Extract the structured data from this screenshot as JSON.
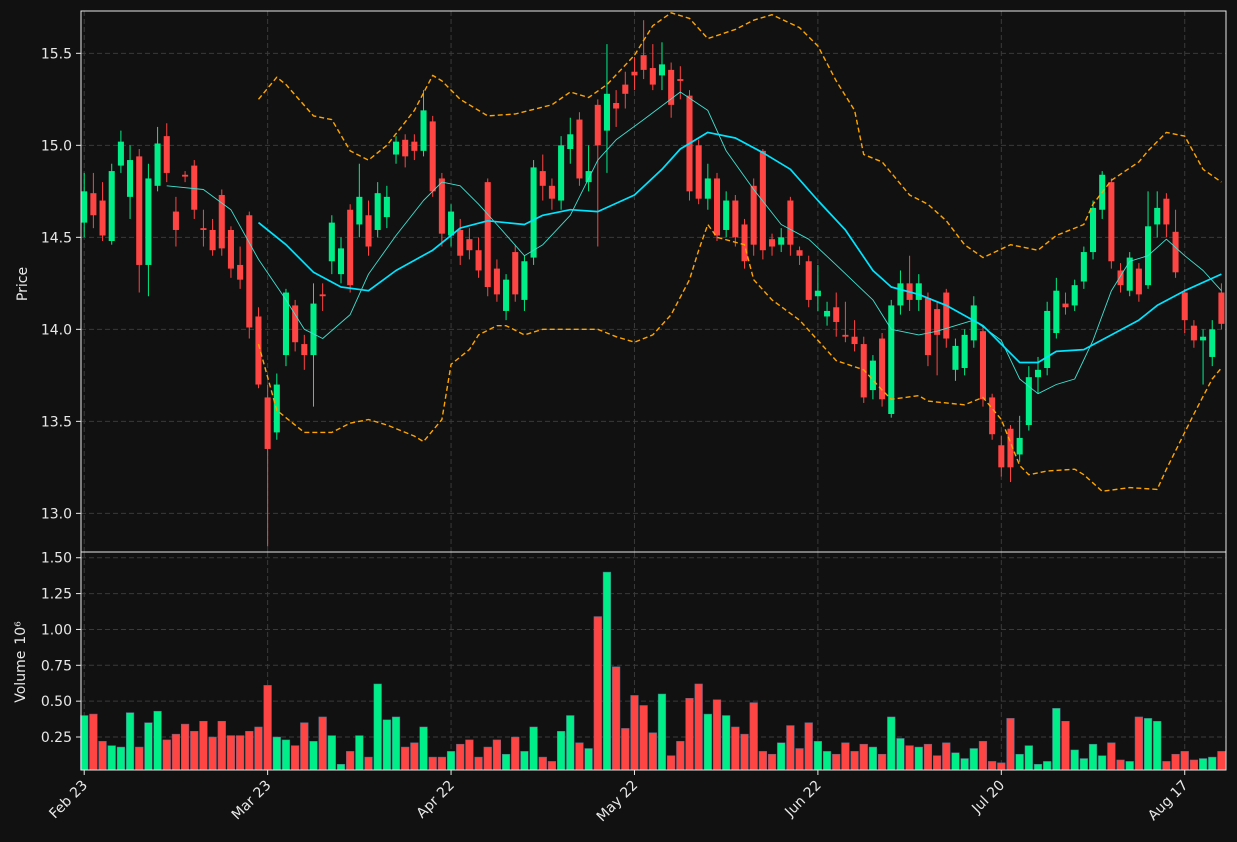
{
  "chart_data": {
    "type": "candlestick",
    "up_color": "#00ee88",
    "down_color": "#ff4444",
    "grid": true,
    "ylabel": "Price",
    "volume_label": "Volume",
    "volume_offset": "10⁶",
    "xlim": [
      -0.35,
      124.5
    ],
    "ylim": [
      12.79,
      15.73
    ],
    "yticks": [
      {
        "value": 13,
        "label": "13.0"
      },
      13.5,
      {
        "value": 14,
        "label": "14.0"
      },
      14.5,
      {
        "value": 15,
        "label": "15.0"
      },
      15.5
    ],
    "volume_ylim": [
      0.02,
      1.54
    ],
    "volume_yticks": [
      0.25,
      {
        "value": 0.5,
        "label": "0.50"
      },
      0.75,
      {
        "value": 1,
        "label": "1.00"
      },
      1.25,
      {
        "value": 1.5,
        "label": "1.50"
      }
    ],
    "categories": [
      "Feb 23",
      null,
      null,
      null,
      null,
      null,
      null,
      null,
      null,
      null,
      null,
      null,
      null,
      null,
      null,
      null,
      null,
      null,
      null,
      null,
      "Mar 23",
      null,
      null,
      null,
      null,
      null,
      null,
      null,
      null,
      null,
      null,
      null,
      null,
      null,
      null,
      null,
      null,
      null,
      null,
      null,
      "Apr 22",
      null,
      null,
      null,
      null,
      null,
      null,
      null,
      null,
      null,
      null,
      null,
      null,
      null,
      null,
      null,
      null,
      null,
      null,
      null,
      "May 22",
      null,
      null,
      null,
      null,
      null,
      null,
      null,
      null,
      null,
      null,
      null,
      null,
      null,
      null,
      null,
      null,
      null,
      null,
      null,
      "Jun 22",
      null,
      null,
      null,
      null,
      null,
      null,
      null,
      null,
      null,
      null,
      null,
      null,
      null,
      null,
      null,
      null,
      null,
      null,
      null,
      "Jul 20",
      null,
      null,
      null,
      null,
      null,
      null,
      null,
      null,
      null,
      null,
      null,
      null,
      null,
      null,
      null,
      null,
      null,
      null,
      null,
      "Aug 17",
      null,
      null,
      null,
      null
    ],
    "open": [
      14.58,
      14.74,
      14.7,
      14.48,
      14.89,
      14.72,
      14.94,
      14.35,
      14.78,
      15.05,
      14.64,
      14.84,
      14.89,
      14.55,
      14.54,
      14.73,
      14.54,
      14.35,
      14.62,
      14.07,
      13.63,
      13.44,
      13.86,
      14.13,
      13.92,
      13.86,
      14.19,
      14.37,
      14.3,
      14.65,
      14.57,
      14.62,
      14.54,
      14.61,
      14.95,
      15.03,
      15.02,
      14.97,
      15.13,
      14.82,
      14.51,
      14.54,
      14.49,
      14.43,
      14.8,
      14.33,
      14.1,
      14.42,
      14.16,
      14.39,
      14.86,
      14.78,
      14.7,
      14.98,
      15.14,
      14.8,
      15.22,
      15.08,
      15.23,
      15.33,
      15.4,
      15.49,
      15.42,
      15.38,
      15.41,
      15.36,
      15.27,
      15.0,
      14.71,
      14.82,
      14.54,
      14.7,
      14.57,
      14.78,
      14.97,
      14.49,
      14.46,
      14.7,
      14.43,
      14.37,
      14.18,
      14.07,
      14.12,
      13.97,
      13.96,
      13.92,
      13.67,
      13.95,
      13.54,
      14.13,
      14.25,
      14.16,
      14.17,
      14.11,
      14.2,
      13.78,
      13.79,
      13.94,
      13.99,
      13.63,
      13.37,
      13.46,
      13.32,
      13.48,
      13.74,
      13.79,
      13.98,
      14.14,
      14.13,
      14.26,
      14.42,
      14.65,
      14.8,
      14.32,
      14.21,
      14.33,
      14.24,
      14.57,
      14.71,
      14.53,
      14.2,
      14.02,
      13.94,
      13.85,
      14.2
    ],
    "high": [
      14.85,
      14.85,
      14.8,
      14.9,
      15.08,
      15.0,
      14.98,
      14.9,
      15.1,
      15.12,
      14.72,
      14.86,
      14.92,
      14.65,
      14.6,
      14.76,
      14.56,
      14.45,
      14.64,
      14.12,
      13.7,
      13.76,
      14.22,
      14.16,
      13.97,
      14.25,
      14.25,
      14.62,
      14.5,
      14.68,
      14.9,
      14.7,
      14.8,
      14.78,
      15.05,
      15.06,
      15.06,
      15.3,
      15.16,
      14.85,
      14.68,
      14.6,
      14.55,
      14.5,
      14.82,
      14.38,
      14.3,
      14.46,
      14.4,
      14.92,
      14.95,
      14.82,
      15.05,
      15.15,
      15.18,
      15.0,
      15.25,
      15.55,
      15.3,
      15.4,
      15.48,
      15.68,
      15.55,
      15.56,
      15.45,
      15.43,
      15.3,
      15.03,
      14.9,
      14.85,
      14.75,
      14.73,
      14.6,
      14.82,
      14.98,
      14.52,
      14.55,
      14.72,
      14.45,
      14.4,
      14.35,
      14.15,
      14.2,
      14.15,
      14.05,
      13.96,
      13.86,
      13.98,
      14.16,
      14.32,
      14.4,
      14.3,
      14.2,
      14.15,
      14.22,
      13.95,
      14.0,
      14.18,
      14.02,
      13.65,
      13.42,
      13.48,
      13.53,
      13.8,
      13.85,
      14.15,
      14.28,
      14.2,
      14.27,
      14.45,
      14.7,
      14.86,
      14.82,
      14.36,
      14.42,
      14.36,
      14.75,
      14.75,
      14.74,
      14.65,
      14.22,
      14.05,
      14.0,
      14.05,
      14.25
    ],
    "low": [
      14.5,
      14.55,
      14.48,
      14.46,
      14.85,
      14.6,
      14.2,
      14.18,
      14.75,
      14.8,
      14.45,
      14.8,
      14.6,
      14.45,
      14.4,
      14.4,
      14.28,
      14.22,
      13.95,
      13.68,
      12.82,
      13.4,
      13.8,
      13.88,
      13.78,
      13.58,
      14.1,
      14.3,
      14.25,
      14.2,
      14.5,
      14.4,
      14.5,
      14.55,
      14.9,
      14.88,
      14.92,
      14.94,
      14.72,
      14.45,
      14.45,
      14.35,
      14.38,
      14.28,
      14.18,
      14.15,
      14.05,
      14.15,
      14.1,
      14.35,
      14.7,
      14.65,
      14.65,
      14.9,
      14.78,
      14.75,
      14.45,
      14.85,
      15.1,
      15.2,
      15.3,
      15.36,
      15.3,
      15.3,
      15.15,
      15.25,
      14.7,
      14.68,
      14.65,
      14.48,
      14.5,
      14.45,
      14.33,
      14.4,
      14.38,
      14.4,
      14.42,
      14.4,
      14.35,
      14.12,
      14.1,
      14.02,
      13.96,
      13.93,
      13.88,
      13.6,
      13.62,
      13.58,
      13.52,
      14.08,
      14.1,
      14.1,
      13.8,
      13.75,
      13.9,
      13.72,
      13.75,
      13.9,
      13.58,
      13.4,
      13.2,
      13.17,
      13.28,
      13.45,
      13.65,
      13.75,
      13.95,
      14.08,
      14.1,
      14.22,
      14.38,
      14.6,
      14.33,
      14.2,
      14.18,
      14.15,
      14.22,
      14.5,
      14.5,
      14.28,
      13.98,
      13.9,
      13.7,
      13.8,
      14.0
    ],
    "close": [
      14.75,
      14.62,
      14.51,
      14.86,
      15.02,
      14.92,
      14.35,
      14.82,
      15.01,
      14.85,
      14.54,
      14.83,
      14.65,
      14.54,
      14.43,
      14.44,
      14.33,
      14.27,
      14.01,
      13.7,
      13.35,
      13.7,
      14.2,
      13.93,
      13.86,
      14.14,
      14.18,
      14.58,
      14.44,
      14.24,
      14.72,
      14.45,
      14.74,
      14.72,
      15.02,
      14.94,
      14.97,
      15.19,
      14.75,
      14.52,
      14.64,
      14.4,
      14.43,
      14.32,
      14.23,
      14.19,
      14.27,
      14.19,
      14.37,
      14.88,
      14.78,
      14.71,
      15.0,
      15.06,
      14.82,
      14.86,
      15.0,
      15.28,
      15.2,
      15.28,
      15.38,
      15.41,
      15.33,
      15.44,
      15.22,
      15.35,
      14.75,
      14.71,
      14.82,
      14.51,
      14.7,
      14.5,
      14.37,
      14.46,
      14.43,
      14.45,
      14.5,
      14.46,
      14.4,
      14.16,
      14.21,
      14.1,
      14.04,
      13.96,
      13.92,
      13.63,
      13.83,
      13.62,
      14.13,
      14.25,
      14.16,
      14.25,
      13.86,
      13.97,
      13.95,
      13.91,
      13.97,
      14.13,
      13.62,
      13.43,
      13.25,
      13.25,
      13.41,
      13.74,
      13.78,
      14.1,
      14.21,
      14.12,
      14.24,
      14.42,
      14.66,
      14.84,
      14.37,
      14.24,
      14.39,
      14.19,
      14.56,
      14.66,
      14.57,
      14.31,
      14.05,
      13.94,
      13.96,
      14.0,
      14.03
    ],
    "volume": [
      0.4,
      0.41,
      0.22,
      0.19,
      0.18,
      0.42,
      0.18,
      0.35,
      0.43,
      0.23,
      0.27,
      0.34,
      0.29,
      0.36,
      0.25,
      0.36,
      0.26,
      0.26,
      0.29,
      0.32,
      0.61,
      0.25,
      0.23,
      0.19,
      0.35,
      0.22,
      0.39,
      0.26,
      0.06,
      0.15,
      0.26,
      0.11,
      0.62,
      0.37,
      0.39,
      0.18,
      0.21,
      0.32,
      0.11,
      0.11,
      0.15,
      0.2,
      0.23,
      0.11,
      0.18,
      0.23,
      0.13,
      0.25,
      0.15,
      0.32,
      0.11,
      0.08,
      0.29,
      0.4,
      0.21,
      0.17,
      1.09,
      1.4,
      0.74,
      0.31,
      0.54,
      0.47,
      0.28,
      0.55,
      0.12,
      0.22,
      0.52,
      0.62,
      0.41,
      0.51,
      0.4,
      0.32,
      0.27,
      0.49,
      0.15,
      0.13,
      0.21,
      0.33,
      0.17,
      0.35,
      0.22,
      0.15,
      0.13,
      0.21,
      0.15,
      0.2,
      0.18,
      0.13,
      0.39,
      0.24,
      0.19,
      0.18,
      0.2,
      0.12,
      0.21,
      0.14,
      0.1,
      0.17,
      0.22,
      0.08,
      0.07,
      0.38,
      0.13,
      0.19,
      0.06,
      0.08,
      0.45,
      0.36,
      0.16,
      0.1,
      0.2,
      0.12,
      0.21,
      0.09,
      0.08,
      0.39,
      0.38,
      0.36,
      0.08,
      0.13,
      0.15,
      0.09,
      0.1,
      0.11,
      0.15
    ],
    "overlays": [
      {
        "color": "#40e0d0",
        "linewidth": 0.9,
        "linestyle": "solid",
        "x": [
          9,
          13,
          16,
          19,
          22,
          24,
          26,
          29,
          31,
          34,
          37,
          39,
          41,
          43,
          45,
          48,
          50,
          53,
          56,
          58,
          61,
          65,
          68,
          70,
          73,
          76,
          79,
          82,
          86,
          88,
          91,
          93,
          97,
          100,
          102,
          104,
          106,
          108,
          110,
          112,
          114,
          116,
          118,
          120,
          122,
          124
        ],
        "values": [
          14.78,
          14.76,
          14.65,
          14.38,
          14.16,
          14.0,
          13.95,
          14.08,
          14.3,
          14.51,
          14.7,
          14.8,
          14.78,
          14.68,
          14.57,
          14.4,
          14.46,
          14.62,
          14.92,
          15.03,
          15.14,
          15.29,
          15.19,
          14.97,
          14.76,
          14.57,
          14.49,
          14.35,
          14.16,
          14.0,
          13.97,
          13.99,
          14.05,
          13.94,
          13.73,
          13.65,
          13.7,
          13.73,
          13.94,
          14.21,
          14.37,
          14.4,
          14.49,
          14.4,
          14.32,
          14.21
        ]
      },
      {
        "color": "#00e5ff",
        "linewidth": 1.7,
        "linestyle": "solid",
        "x": [
          19,
          22,
          25,
          28,
          31,
          34,
          38,
          41,
          44,
          48,
          50,
          53,
          56,
          60,
          63,
          65,
          68,
          71,
          74,
          77,
          80,
          83,
          86,
          88,
          91,
          94,
          98,
          100,
          102,
          104,
          106,
          109,
          112,
          115,
          117,
          120,
          124
        ],
        "values": [
          14.58,
          14.46,
          14.31,
          14.23,
          14.21,
          14.32,
          14.43,
          14.55,
          14.59,
          14.57,
          14.62,
          14.65,
          14.64,
          14.73,
          14.87,
          14.98,
          15.07,
          15.04,
          14.96,
          14.87,
          14.7,
          14.54,
          14.32,
          14.23,
          14.19,
          14.13,
          14.02,
          13.92,
          13.82,
          13.82,
          13.88,
          13.89,
          13.97,
          14.05,
          14.13,
          14.21,
          14.3
        ]
      },
      {
        "color": "#ffa500",
        "linewidth": 1.4,
        "linestyle": "dashed",
        "x": [
          19,
          21,
          22,
          25,
          27,
          29,
          31,
          33,
          36,
          38,
          39,
          41,
          44,
          47,
          51,
          53,
          55,
          57,
          60,
          62,
          64,
          66,
          68,
          71,
          73,
          75,
          78,
          80,
          82,
          84,
          85,
          87,
          90,
          92,
          94,
          96,
          98,
          101,
          104,
          106,
          109,
          110,
          112,
          115,
          116,
          118,
          120,
          122,
          124
        ],
        "values": [
          15.25,
          15.37,
          15.33,
          15.16,
          15.14,
          14.97,
          14.92,
          15.0,
          15.19,
          15.38,
          15.35,
          15.25,
          15.16,
          15.17,
          15.22,
          15.29,
          15.26,
          15.33,
          15.49,
          15.65,
          15.72,
          15.69,
          15.58,
          15.63,
          15.68,
          15.71,
          15.64,
          15.54,
          15.35,
          15.19,
          14.95,
          14.91,
          14.73,
          14.68,
          14.59,
          14.46,
          14.39,
          14.46,
          14.43,
          14.51,
          14.57,
          14.68,
          14.81,
          14.91,
          14.97,
          15.07,
          15.05,
          14.87,
          14.8
        ]
      },
      {
        "color": "#ffa500",
        "linewidth": 1.4,
        "linestyle": "dashed",
        "x": [
          19,
          21,
          22,
          24,
          27,
          29,
          31,
          33,
          36,
          37,
          39,
          40,
          42,
          43,
          45,
          46,
          48,
          50,
          53,
          56,
          58,
          60,
          62,
          64,
          66,
          67,
          68,
          69,
          72,
          73,
          75,
          78,
          80,
          82,
          85,
          87,
          88,
          91,
          92,
          96,
          98,
          100,
          102,
          103,
          105,
          108,
          109,
          111,
          114,
          117,
          118,
          121,
          123,
          124
        ],
        "values": [
          13.92,
          13.56,
          13.52,
          13.44,
          13.44,
          13.49,
          13.51,
          13.48,
          13.42,
          13.39,
          13.51,
          13.81,
          13.89,
          13.97,
          14.02,
          14.02,
          13.97,
          14.0,
          14.0,
          14.0,
          13.96,
          13.93,
          13.97,
          14.08,
          14.27,
          14.43,
          14.57,
          14.5,
          14.46,
          14.27,
          14.16,
          14.05,
          13.94,
          13.83,
          13.78,
          13.67,
          13.62,
          13.64,
          13.61,
          13.59,
          13.63,
          13.51,
          13.26,
          13.21,
          13.23,
          13.24,
          13.21,
          13.12,
          13.14,
          13.13,
          13.24,
          13.54,
          13.73,
          13.79
        ]
      }
    ]
  }
}
